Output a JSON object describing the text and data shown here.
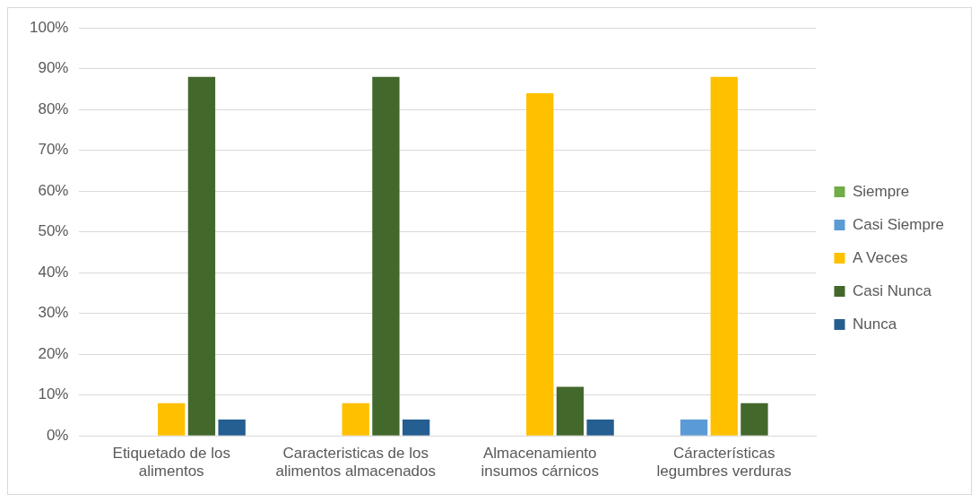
{
  "chart_data": {
    "type": "bar",
    "categories": [
      "Etiquetado de los alimentos",
      "Caracteristicas de los alimentos almacenados",
      "Almacenamiento insumos cárnicos",
      "Cáracterísticas legumbres verduras"
    ],
    "series": [
      {
        "name": "Siempre",
        "color": "#70ad47",
        "values": [
          0,
          0,
          0,
          0
        ]
      },
      {
        "name": "Casi Siempre",
        "color": "#5b9bd5",
        "values": [
          0,
          0,
          0,
          4
        ]
      },
      {
        "name": "A Veces",
        "color": "#ffc000",
        "values": [
          8,
          8,
          84,
          88
        ]
      },
      {
        "name": "Casi Nunca",
        "color": "#43682b",
        "values": [
          88,
          88,
          12,
          8
        ]
      },
      {
        "name": "Nunca",
        "color": "#255e91",
        "values": [
          4,
          4,
          4,
          0
        ]
      }
    ],
    "ylim": [
      0,
      100
    ],
    "yticks": [
      {
        "value": 0,
        "label": "0%"
      },
      {
        "value": 10,
        "label": "10%"
      },
      {
        "value": 20,
        "label": "20%"
      },
      {
        "value": 30,
        "label": "30%"
      },
      {
        "value": 40,
        "label": "40%"
      },
      {
        "value": 50,
        "label": "50%"
      },
      {
        "value": 60,
        "label": "60%"
      },
      {
        "value": 70,
        "label": "70%"
      },
      {
        "value": 80,
        "label": "80%"
      },
      {
        "value": 90,
        "label": "90%"
      },
      {
        "value": 100,
        "label": "100%"
      }
    ],
    "grid": "y",
    "legend": "right"
  }
}
